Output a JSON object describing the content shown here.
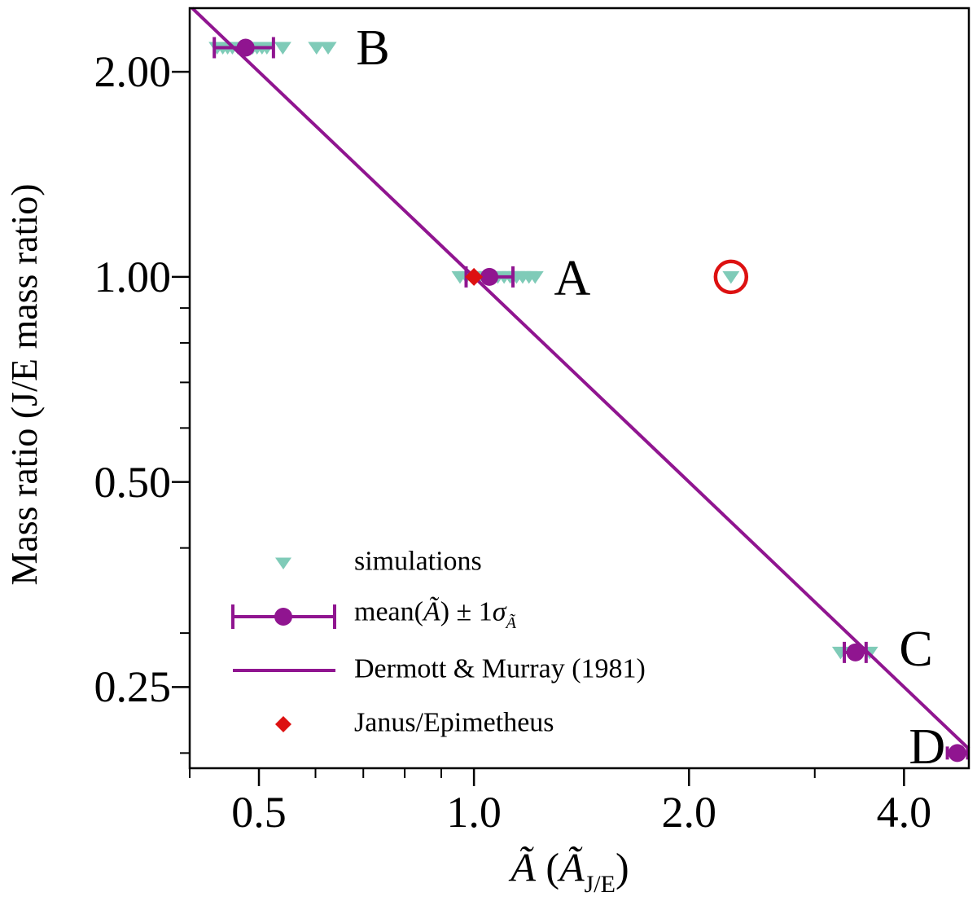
{
  "chart_data": {
    "type": "scatter",
    "xscale": "log",
    "yscale": "log",
    "xlim": [
      0.4,
      4.93
    ],
    "ylim": [
      0.19,
      2.48
    ],
    "grid": false,
    "ylabel": "Mass ratio (J/E mass ratio)",
    "xlabel_parts": [
      {
        "t": "Ã",
        "italic": true
      },
      {
        "t": " ("
      },
      {
        "t": "Ã",
        "italic": true
      },
      {
        "t": "J/E",
        "sub": true
      },
      {
        "t": ")"
      }
    ],
    "x_ticks": [
      {
        "v": 0.5,
        "label": "0.5"
      },
      {
        "v": 1.0,
        "label": "1.0"
      },
      {
        "v": 2.0,
        "label": "2.0"
      },
      {
        "v": 4.0,
        "label": "4.0"
      }
    ],
    "x_minor_ticks": [
      0.4,
      0.6,
      0.7,
      0.8,
      0.9,
      3.0
    ],
    "y_ticks": [
      {
        "v": 2.0,
        "label": "2.00"
      },
      {
        "v": 1.0,
        "label": "1.00"
      },
      {
        "v": 0.5,
        "label": "0.50"
      },
      {
        "v": 0.25,
        "label": "0.25"
      }
    ],
    "y_minor_ticks": [
      0.9,
      0.8,
      0.7,
      0.6,
      0.4,
      0.3,
      0.2
    ],
    "reference_line": {
      "name": "Dermott & Murray (1981)",
      "through": [
        1.0,
        1.0
      ],
      "loglog_slope": -1
    },
    "clusters": [
      {
        "label": "B",
        "mass_ratio": 2.17,
        "mean_A": 0.479,
        "err_lo": 0.433,
        "err_hi": 0.524,
        "small_caps": false,
        "sims": [
          0.437,
          0.445,
          0.452,
          0.459,
          0.467,
          0.474,
          0.482,
          0.49,
          0.497,
          0.505,
          0.513,
          0.54,
          0.602,
          0.625
        ],
        "label_at": [
          0.722,
          2.16
        ]
      },
      {
        "label": "A",
        "mass_ratio": 1.0,
        "mean_A": 1.051,
        "err_lo": 0.975,
        "err_hi": 1.134,
        "small_caps": false,
        "sims": [
          0.956,
          0.976,
          0.997,
          1.017,
          1.038,
          1.059,
          1.08,
          1.102,
          1.124,
          1.147,
          1.17,
          1.194,
          1.218
        ],
        "label_at": [
          1.373,
          0.991
        ]
      },
      {
        "label": "C",
        "mass_ratio": 0.281,
        "mean_A": 3.42,
        "err_lo": 3.3,
        "err_hi": 3.54,
        "small_caps": false,
        "sims": [
          3.26,
          3.58
        ],
        "label_at": [
          4.157,
          0.283
        ]
      },
      {
        "label": "D",
        "mass_ratio": 0.2,
        "mean_A": 4.75,
        "err_lo": 4.6,
        "err_hi": 4.91,
        "small_caps": true,
        "sims": [],
        "label_at": [
          4.31,
          0.2035
        ]
      }
    ],
    "janus_point": {
      "x": 1.0,
      "y": 1.0
    },
    "outlier": {
      "x": 2.29,
      "y": 1.0,
      "ring": true
    }
  },
  "legend": {
    "items": [
      {
        "marker": "triangle",
        "parts": [
          {
            "t": "simulations"
          }
        ]
      },
      {
        "marker": "errorbar",
        "parts": [
          {
            "t": "mean("
          },
          {
            "t": "Ã",
            "italic": true
          },
          {
            "t": ") ± 1"
          },
          {
            "t": "σ",
            "italic": true
          },
          {
            "t": "Ã",
            "italic": true,
            "sub": true
          }
        ]
      },
      {
        "marker": "line",
        "parts": [
          {
            "t": "Dermott & Murray (1981)"
          }
        ]
      },
      {
        "marker": "diamond",
        "parts": [
          {
            "t": "Janus/Epimetheus"
          }
        ]
      }
    ]
  },
  "colors": {
    "simulation": "#7fcbb8",
    "mean_series": "#901590",
    "reference_line": "#901590",
    "janus": "#dd1111",
    "outlier_ring": "#dd1111",
    "frame": "#000000"
  }
}
